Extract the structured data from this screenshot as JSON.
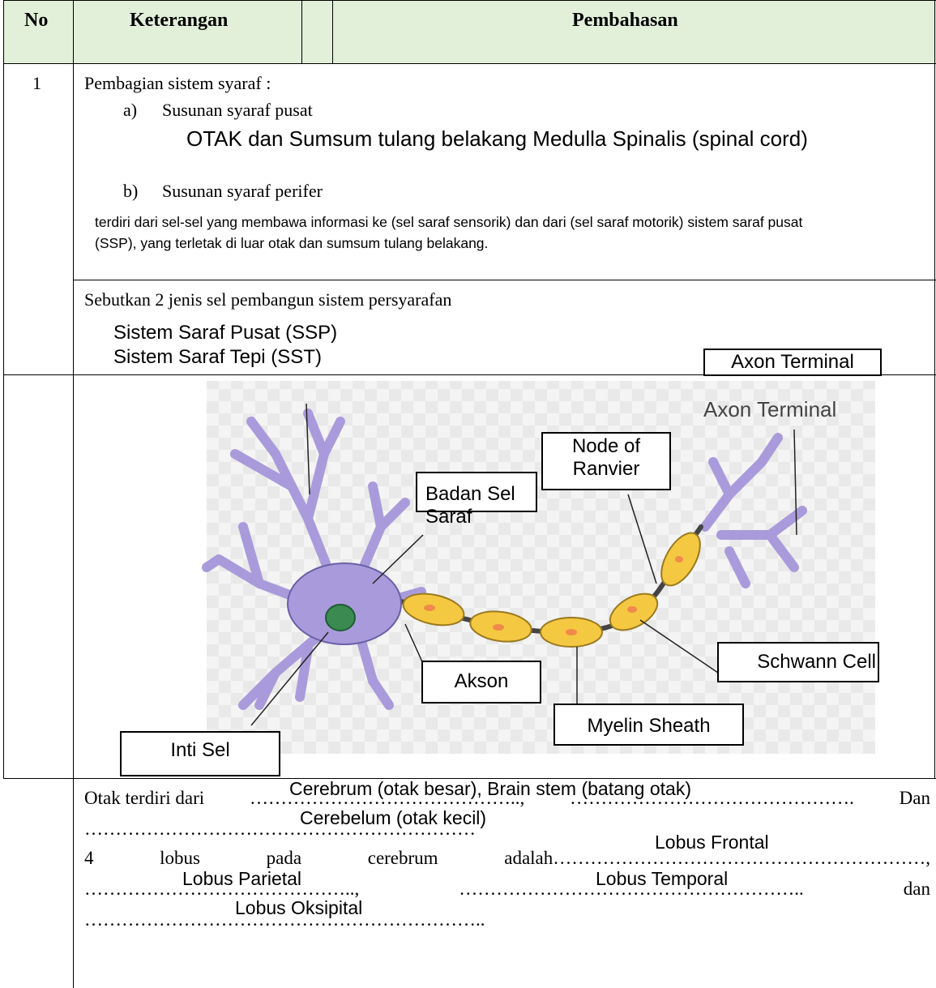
{
  "header": {
    "no": "No",
    "keterangan": "Keterangan",
    "pembahasan": "Pembahasan"
  },
  "rows": [
    {
      "no": "1",
      "intro": "Pembagian sistem syaraf :",
      "items": [
        {
          "marker": "a)",
          "text": "Susunan syaraf pusat",
          "answer": "OTAK dan Sumsum tulang belakang Medulla Spinalis (spinal cord)"
        },
        {
          "marker": "b)",
          "text": "Susunan syaraf perifer",
          "answer": "terdiri dari sel-sel yang membawa informasi ke (sel saraf sensorik) dan dari (sel saraf motorik) sistem saraf pusat (SSP), yang terletak di luar otak dan sumsum tulang belakang."
        }
      ]
    },
    {
      "question": "Sebutkan 2 jenis sel pembangun sistem persyarafan",
      "answers": [
        "Sistem Saraf Pusat (SSP)",
        "Sistem Saraf Tepi (SST)"
      ]
    },
    {
      "diagram": {
        "axon_terminal_box": "Axon Terminal",
        "axon_terminal_image": "Axon Terminal",
        "node_of_ranvier": "Node of Ranvier",
        "badan_sel": "Badan Sel Saraf",
        "akson": "Akson",
        "schwann_cell": "Schwann Cell",
        "myelin_sheath": "Myelin Sheath",
        "inti_sel": "Inti Sel"
      }
    },
    {
      "fill_in": {
        "lines": [
          [
            "Otak terdiri dari",
            "……………………………………..,",
            "……………………………………….",
            "Dan"
          ],
          [
            "………………………………………………………"
          ],
          [
            "4",
            "lobus",
            "pada",
            "cerebrum",
            "adalah……………………………………………………,"
          ],
          [
            "……………………………………..,",
            "………………………………………………..",
            "dan"
          ],
          [
            "……………………………………………………….."
          ]
        ],
        "answers": [
          "Cerebrum (otak besar), Brain stem (batang otak)",
          "Cerebelum (otak kecil)",
          "Lobus Frontal",
          "Lobus Parietal",
          "Lobus Temporal",
          "Lobus Oksipital"
        ]
      }
    }
  ]
}
